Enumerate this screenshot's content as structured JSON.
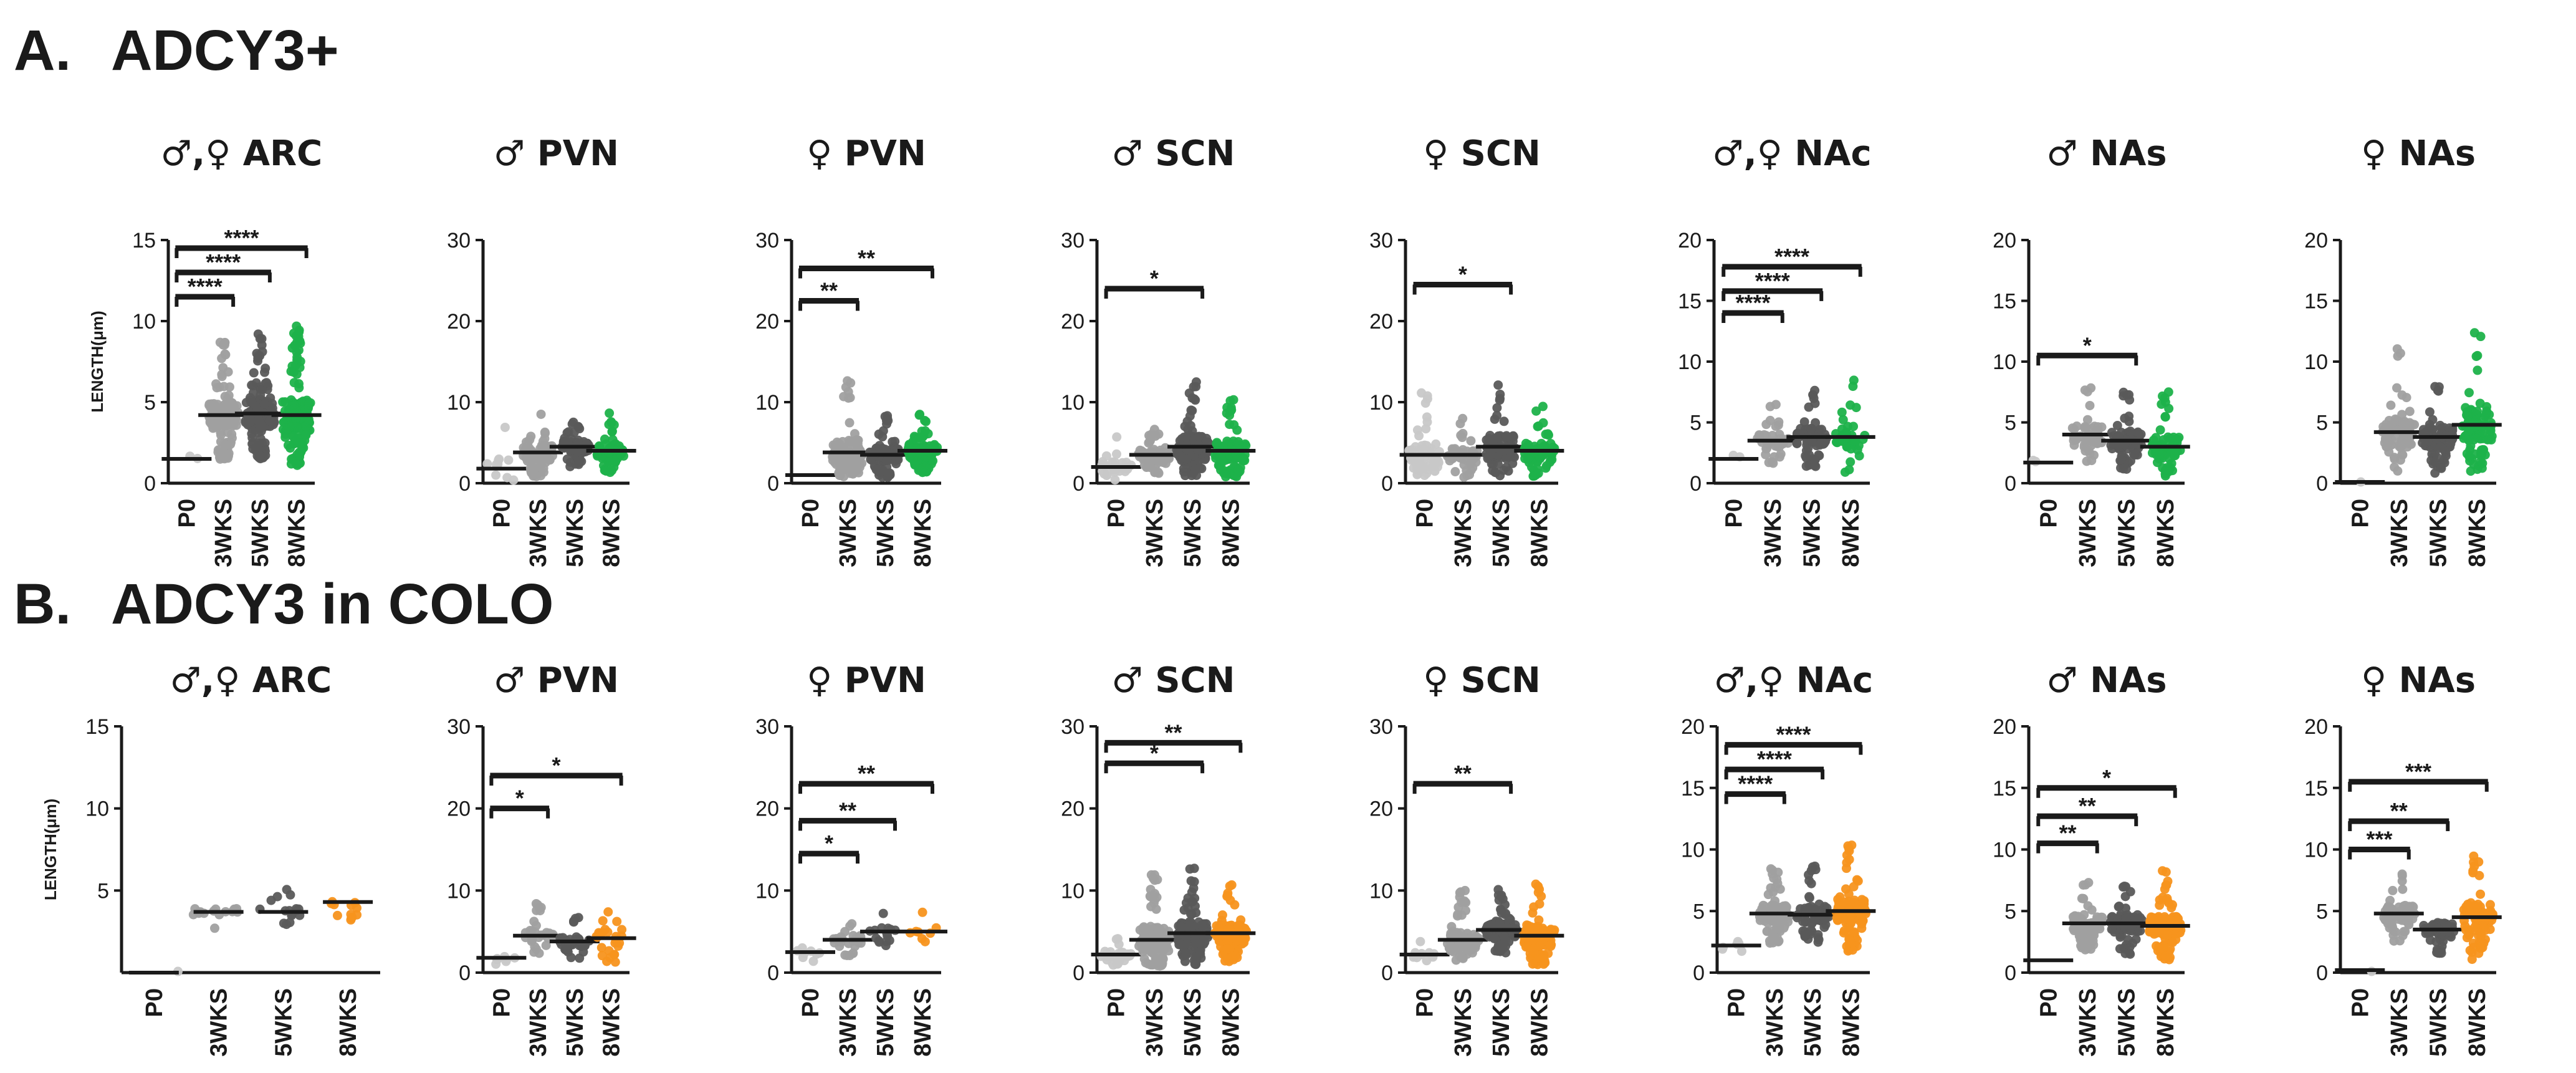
{
  "figure": {
    "section_a": {
      "letter": "A.",
      "title": "ADCY3+"
    },
    "section_b": {
      "letter": "B.",
      "title": "ADCY3 in COLO"
    }
  },
  "colors": {
    "P0": "#c8c8c8",
    "3WKS": "#a0a0a0",
    "5WKS": "#5a5a5a",
    "8WKS_A": "#1db24a",
    "8WKS_B": "#f7941d",
    "axis": "#1a1a1a"
  },
  "chart_data": [
    {
      "id": "a1",
      "type": "scatter",
      "row": "A",
      "title": "♂,♀ ARC",
      "ylabel": "LENGTH(μm)",
      "ylim": [
        0,
        15
      ],
      "yticks": [
        0,
        5,
        10,
        15
      ],
      "categories": [
        "P0",
        "3WKS",
        "5WKS",
        "8WKS"
      ],
      "series": [
        {
          "name": "P0",
          "median": 1.5,
          "spread": 0.5,
          "n": 2
        },
        {
          "name": "3WKS",
          "median": 4.2,
          "spread": 4.5,
          "n": 150
        },
        {
          "name": "5WKS",
          "median": 4.3,
          "spread": 5.0,
          "n": 160
        },
        {
          "name": "8WKS",
          "median": 4.2,
          "spread": 5.5,
          "n": 160
        }
      ],
      "brackets": [
        {
          "from": 0,
          "to": 1,
          "level": 11.5,
          "label": "****"
        },
        {
          "from": 0,
          "to": 2,
          "level": 13.0,
          "label": "****"
        },
        {
          "from": 0,
          "to": 3,
          "level": 14.5,
          "label": "****"
        }
      ]
    },
    {
      "id": "a2",
      "type": "scatter",
      "row": "A",
      "title": "♂ PVN",
      "ylabel": "",
      "ylim": [
        0,
        30
      ],
      "yticks": [
        0,
        10,
        20,
        30
      ],
      "categories": [
        "P0",
        "3WKS",
        "5WKS",
        "8WKS"
      ],
      "series": [
        {
          "name": "P0",
          "median": 1.8,
          "spread": 8,
          "n": 10
        },
        {
          "name": "3WKS",
          "median": 3.8,
          "spread": 5.5,
          "n": 80
        },
        {
          "name": "5WKS",
          "median": 4.5,
          "spread": 4,
          "n": 70
        },
        {
          "name": "8WKS",
          "median": 4.0,
          "spread": 5,
          "n": 70
        }
      ],
      "brackets": []
    },
    {
      "id": "a3",
      "type": "scatter",
      "row": "A",
      "title": "♀ PVN",
      "ylabel": "",
      "ylim": [
        0,
        30
      ],
      "yticks": [
        0,
        10,
        20,
        30
      ],
      "categories": [
        "P0",
        "3WKS",
        "5WKS",
        "8WKS"
      ],
      "series": [
        {
          "name": "P0",
          "median": 1.0,
          "spread": 0,
          "n": 0
        },
        {
          "name": "3WKS",
          "median": 3.8,
          "spread": 9,
          "n": 110
        },
        {
          "name": "5WKS",
          "median": 3.5,
          "spread": 5,
          "n": 100
        },
        {
          "name": "8WKS",
          "median": 4.0,
          "spread": 4.5,
          "n": 110
        }
      ],
      "brackets": [
        {
          "from": 0,
          "to": 1,
          "level": 22.5,
          "label": "**"
        },
        {
          "from": 0,
          "to": 3,
          "level": 26.5,
          "label": "**"
        }
      ]
    },
    {
      "id": "a4",
      "type": "scatter",
      "row": "A",
      "title": "♂ SCN",
      "ylabel": "",
      "ylim": [
        0,
        30
      ],
      "yticks": [
        0,
        10,
        20,
        30
      ],
      "categories": [
        "P0",
        "3WKS",
        "5WKS",
        "8WKS"
      ],
      "series": [
        {
          "name": "P0",
          "median": 2.0,
          "spread": 4,
          "n": 30
        },
        {
          "name": "3WKS",
          "median": 3.5,
          "spread": 4,
          "n": 70
        },
        {
          "name": "5WKS",
          "median": 4.5,
          "spread": 8,
          "n": 140
        },
        {
          "name": "8WKS",
          "median": 4.0,
          "spread": 7,
          "n": 100
        }
      ],
      "brackets": [
        {
          "from": 0,
          "to": 2,
          "level": 24,
          "label": "*"
        }
      ]
    },
    {
      "id": "a5",
      "type": "scatter",
      "row": "A",
      "title": "♀ SCN",
      "ylabel": "",
      "ylim": [
        0,
        30
      ],
      "yticks": [
        0,
        10,
        20,
        30
      ],
      "categories": [
        "P0",
        "3WKS",
        "5WKS",
        "8WKS"
      ],
      "series": [
        {
          "name": "P0",
          "median": 3.5,
          "spread": 8,
          "n": 60
        },
        {
          "name": "3WKS",
          "median": 3.5,
          "spread": 5,
          "n": 50
        },
        {
          "name": "5WKS",
          "median": 4.5,
          "spread": 8,
          "n": 110
        },
        {
          "name": "8WKS",
          "median": 4.0,
          "spread": 6,
          "n": 70
        }
      ],
      "brackets": [
        {
          "from": 0,
          "to": 2,
          "level": 24.5,
          "label": "*"
        }
      ]
    },
    {
      "id": "a6",
      "type": "scatter",
      "row": "A",
      "title": "♂,♀ NAc",
      "ylabel": "",
      "ylim": [
        0,
        20
      ],
      "yticks": [
        0,
        5,
        10,
        15,
        20
      ],
      "categories": [
        "P0",
        "3WKS",
        "5WKS",
        "8WKS"
      ],
      "series": [
        {
          "name": "P0",
          "median": 2.0,
          "spread": 1,
          "n": 2
        },
        {
          "name": "3WKS",
          "median": 3.5,
          "spread": 3,
          "n": 40
        },
        {
          "name": "5WKS",
          "median": 3.8,
          "spread": 4,
          "n": 70
        },
        {
          "name": "8WKS",
          "median": 3.8,
          "spread": 5,
          "n": 40
        }
      ],
      "brackets": [
        {
          "from": 0,
          "to": 1,
          "level": 14,
          "label": "****"
        },
        {
          "from": 0,
          "to": 2,
          "level": 15.8,
          "label": "****"
        },
        {
          "from": 0,
          "to": 3,
          "level": 17.8,
          "label": "****"
        }
      ]
    },
    {
      "id": "a7",
      "type": "scatter",
      "row": "A",
      "title": "♂ NAs",
      "ylabel": "",
      "ylim": [
        0,
        20
      ],
      "yticks": [
        0,
        5,
        10,
        15,
        20
      ],
      "categories": [
        "P0",
        "3WKS",
        "5WKS",
        "8WKS"
      ],
      "series": [
        {
          "name": "P0",
          "median": 1.7,
          "spread": 0.5,
          "n": 2
        },
        {
          "name": "3WKS",
          "median": 4.0,
          "spread": 4,
          "n": 50
        },
        {
          "name": "5WKS",
          "median": 3.5,
          "spread": 4,
          "n": 90
        },
        {
          "name": "8WKS",
          "median": 3.0,
          "spread": 4.5,
          "n": 70
        }
      ],
      "brackets": [
        {
          "from": 0,
          "to": 2,
          "level": 10.5,
          "label": "*"
        }
      ]
    },
    {
      "id": "a8",
      "type": "scatter",
      "row": "A",
      "title": "♀ NAs",
      "ylabel": "",
      "ylim": [
        0,
        20
      ],
      "yticks": [
        0,
        5,
        10,
        15,
        20
      ],
      "categories": [
        "P0",
        "3WKS",
        "5WKS",
        "8WKS"
      ],
      "series": [
        {
          "name": "P0",
          "median": 0.1,
          "spread": 0,
          "n": 1
        },
        {
          "name": "3WKS",
          "median": 4.2,
          "spread": 7,
          "n": 90
        },
        {
          "name": "5WKS",
          "median": 3.8,
          "spread": 5,
          "n": 90
        },
        {
          "name": "8WKS",
          "median": 4.8,
          "spread": 8,
          "n": 100
        }
      ],
      "brackets": []
    },
    {
      "id": "b1",
      "type": "scatter",
      "row": "B",
      "title": "♂,♀ ARC",
      "ylabel": "LENGTH(μm)",
      "ylim": [
        0,
        15
      ],
      "yticks": [
        5,
        10,
        15
      ],
      "categories": [
        "P0",
        "3WKS",
        "5WKS",
        "8WKS"
      ],
      "series": [
        {
          "name": "P0",
          "median": 0,
          "spread": 0,
          "n": 1
        },
        {
          "name": "3WKS",
          "median": 3.7,
          "spread": 1.2,
          "n": 16
        },
        {
          "name": "5WKS",
          "median": 3.7,
          "spread": 1.5,
          "n": 16
        },
        {
          "name": "8WKS",
          "median": 4.3,
          "spread": 1.6,
          "n": 12
        }
      ],
      "brackets": []
    },
    {
      "id": "b2",
      "type": "scatter",
      "row": "B",
      "title": "♂ PVN",
      "ylabel": "",
      "ylim": [
        0,
        30
      ],
      "yticks": [
        0,
        10,
        20,
        30
      ],
      "categories": [
        "P0",
        "3WKS",
        "5WKS",
        "8WKS"
      ],
      "series": [
        {
          "name": "P0",
          "median": 1.8,
          "spread": 0.8,
          "n": 8
        },
        {
          "name": "3WKS",
          "median": 4.5,
          "spread": 4,
          "n": 30
        },
        {
          "name": "5WKS",
          "median": 3.8,
          "spread": 3.5,
          "n": 40
        },
        {
          "name": "8WKS",
          "median": 4.2,
          "spread": 7,
          "n": 25
        }
      ],
      "brackets": [
        {
          "from": 0,
          "to": 1,
          "level": 20,
          "label": "*"
        },
        {
          "from": 0,
          "to": 3,
          "level": 24,
          "label": "*"
        }
      ]
    },
    {
      "id": "b3",
      "type": "scatter",
      "row": "B",
      "title": "♀ PVN",
      "ylabel": "",
      "ylim": [
        0,
        30
      ],
      "yticks": [
        0,
        10,
        20,
        30
      ],
      "categories": [
        "P0",
        "3WKS",
        "5WKS",
        "8WKS"
      ],
      "series": [
        {
          "name": "P0",
          "median": 2.5,
          "spread": 1.5,
          "n": 8
        },
        {
          "name": "3WKS",
          "median": 4.0,
          "spread": 3,
          "n": 25
        },
        {
          "name": "5WKS",
          "median": 5.0,
          "spread": 3,
          "n": 15
        },
        {
          "name": "8WKS",
          "median": 5.0,
          "spread": 3,
          "n": 8
        }
      ],
      "brackets": [
        {
          "from": 0,
          "to": 1,
          "level": 14.5,
          "label": "*"
        },
        {
          "from": 0,
          "to": 2,
          "level": 18.5,
          "label": "**"
        },
        {
          "from": 0,
          "to": 3,
          "level": 23,
          "label": "**"
        }
      ]
    },
    {
      "id": "b4",
      "type": "scatter",
      "row": "B",
      "title": "♂ SCN",
      "ylabel": "",
      "ylim": [
        0,
        30
      ],
      "yticks": [
        0,
        10,
        20,
        30
      ],
      "categories": [
        "P0",
        "3WKS",
        "5WKS",
        "8WKS"
      ],
      "series": [
        {
          "name": "P0",
          "median": 2.2,
          "spread": 2,
          "n": 40
        },
        {
          "name": "3WKS",
          "median": 4.0,
          "spread": 9,
          "n": 150
        },
        {
          "name": "5WKS",
          "median": 4.8,
          "spread": 8,
          "n": 130
        },
        {
          "name": "8WKS",
          "median": 4.8,
          "spread": 6,
          "n": 150
        }
      ],
      "brackets": [
        {
          "from": 0,
          "to": 2,
          "level": 25.5,
          "label": "*"
        },
        {
          "from": 0,
          "to": 3,
          "level": 28,
          "label": "**"
        }
      ]
    },
    {
      "id": "b5",
      "type": "scatter",
      "row": "B",
      "title": "♀ SCN",
      "ylabel": "",
      "ylim": [
        0,
        30
      ],
      "yticks": [
        0,
        10,
        20,
        30
      ],
      "categories": [
        "P0",
        "3WKS",
        "5WKS",
        "8WKS"
      ],
      "series": [
        {
          "name": "P0",
          "median": 2.2,
          "spread": 2,
          "n": 12
        },
        {
          "name": "3WKS",
          "median": 4.0,
          "spread": 6,
          "n": 90
        },
        {
          "name": "5WKS",
          "median": 5.2,
          "spread": 5,
          "n": 120
        },
        {
          "name": "8WKS",
          "median": 4.5,
          "spread": 7,
          "n": 120
        }
      ],
      "brackets": [
        {
          "from": 0,
          "to": 2,
          "level": 23,
          "label": "**"
        }
      ]
    },
    {
      "id": "b6",
      "type": "scatter",
      "row": "B",
      "title": "♂,♀ NAc",
      "ylabel": "",
      "ylim": [
        0,
        20
      ],
      "yticks": [
        0,
        5,
        10,
        15,
        20
      ],
      "categories": [
        "P0",
        "3WKS",
        "5WKS",
        "8WKS"
      ],
      "series": [
        {
          "name": "P0",
          "median": 2.2,
          "spread": 1,
          "n": 6
        },
        {
          "name": "3WKS",
          "median": 4.8,
          "spread": 4,
          "n": 90
        },
        {
          "name": "5WKS",
          "median": 4.7,
          "spread": 4,
          "n": 70
        },
        {
          "name": "8WKS",
          "median": 5.0,
          "spread": 5.5,
          "n": 130
        }
      ],
      "brackets": [
        {
          "from": 0,
          "to": 1,
          "level": 14.5,
          "label": "****"
        },
        {
          "from": 0,
          "to": 2,
          "level": 16.5,
          "label": "****"
        },
        {
          "from": 0,
          "to": 3,
          "level": 18.5,
          "label": "****"
        }
      ]
    },
    {
      "id": "b7",
      "type": "scatter",
      "row": "B",
      "title": "♂ NAs",
      "ylabel": "",
      "ylim": [
        0,
        20
      ],
      "yticks": [
        0,
        5,
        10,
        15,
        20
      ],
      "categories": [
        "P0",
        "3WKS",
        "5WKS",
        "8WKS"
      ],
      "series": [
        {
          "name": "P0",
          "median": 1.0,
          "spread": 0,
          "n": 0
        },
        {
          "name": "3WKS",
          "median": 4.0,
          "spread": 3.5,
          "n": 80
        },
        {
          "name": "5WKS",
          "median": 4.0,
          "spread": 4,
          "n": 80
        },
        {
          "name": "8WKS",
          "median": 3.8,
          "spread": 4.5,
          "n": 110
        }
      ],
      "brackets": [
        {
          "from": 0,
          "to": 1,
          "level": 10.5,
          "label": "**"
        },
        {
          "from": 0,
          "to": 2,
          "level": 12.7,
          "label": "**"
        },
        {
          "from": 0,
          "to": 3,
          "level": 15,
          "label": "*"
        }
      ]
    },
    {
      "id": "b8",
      "type": "scatter",
      "row": "B",
      "title": "♀ NAs",
      "ylabel": "",
      "ylim": [
        0,
        20
      ],
      "yticks": [
        0,
        5,
        10,
        15,
        20
      ],
      "categories": [
        "P0",
        "3WKS",
        "5WKS",
        "8WKS"
      ],
      "series": [
        {
          "name": "P0",
          "median": 0.2,
          "spread": 0,
          "n": 1
        },
        {
          "name": "3WKS",
          "median": 4.8,
          "spread": 3.5,
          "n": 70
        },
        {
          "name": "5WKS",
          "median": 3.5,
          "spread": 3,
          "n": 60
        },
        {
          "name": "8WKS",
          "median": 4.5,
          "spread": 6,
          "n": 80
        }
      ],
      "brackets": [
        {
          "from": 0,
          "to": 1,
          "level": 10,
          "label": "***"
        },
        {
          "from": 0,
          "to": 2,
          "level": 12.3,
          "label": "**"
        },
        {
          "from": 0,
          "to": 3,
          "level": 15.5,
          "label": "***"
        }
      ]
    }
  ]
}
